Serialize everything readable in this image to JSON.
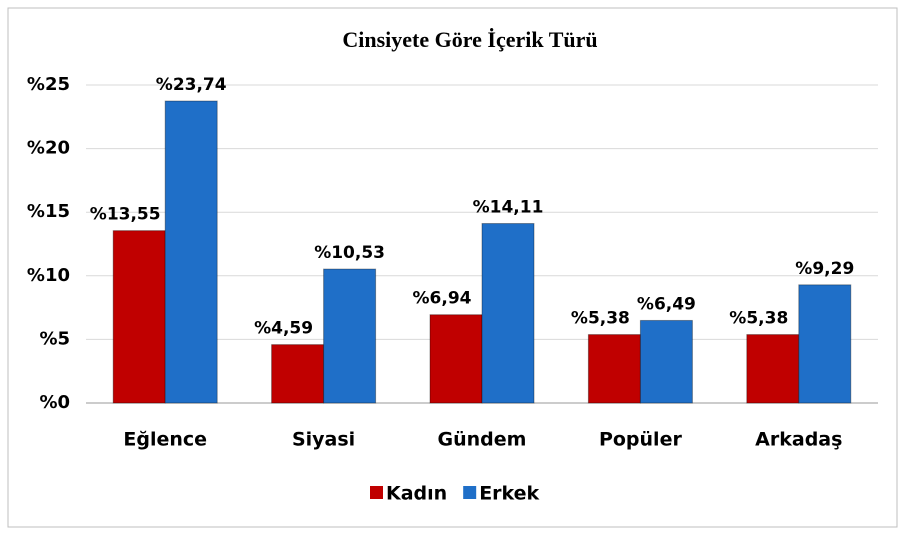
{
  "chart_data": {
    "type": "bar",
    "title": "Cinsiyete Göre İçerik Türü",
    "categories": [
      "Eğlence",
      "Siyasi",
      "Gündem",
      "Popüler",
      "Arkadaş"
    ],
    "series": [
      {
        "name": "Kadın",
        "color": "#c00000",
        "values": [
          13.55,
          4.59,
          6.94,
          5.38,
          5.38
        ],
        "value_labels": [
          "%13,55",
          "%4,59",
          "%6,94",
          "%5,38",
          "%5,38"
        ]
      },
      {
        "name": "Erkek",
        "color": "#1f6fc8",
        "values": [
          23.74,
          10.53,
          14.11,
          6.49,
          9.29
        ],
        "value_labels": [
          "%23,74",
          "%10,53",
          "%14,11",
          "%6,49",
          "%9,29"
        ]
      }
    ],
    "ylim": [
      0,
      25
    ],
    "yticks": [
      {
        "value": 0,
        "label": "%0"
      },
      {
        "value": 5,
        "label": "%5"
      },
      {
        "value": 10,
        "label": "%10"
      },
      {
        "value": 15,
        "label": "%15"
      },
      {
        "value": 20,
        "label": "%20"
      },
      {
        "value": 25,
        "label": "%25"
      }
    ],
    "grid": true,
    "legend": "bottom"
  }
}
